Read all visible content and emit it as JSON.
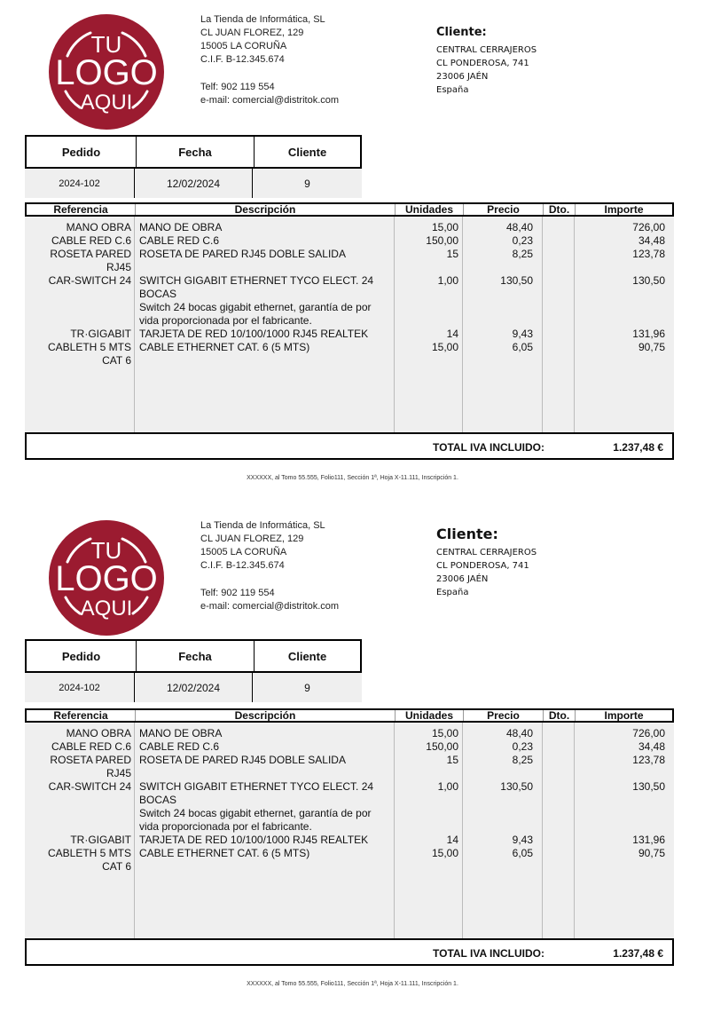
{
  "copies": [
    {
      "company": {
        "name": "La Tienda de Informática, SL",
        "address": "CL JUAN FLOREZ, 129",
        "city": "15005 LA CORUÑA",
        "cif": "C.I.F. B-12.345.674",
        "phone": "Telf: 902 119 554",
        "email": "e-mail: comercial@distritok.com"
      },
      "logo_text": [
        "TU",
        "LOGO",
        "AQUI"
      ],
      "client": {
        "label": "Cliente:",
        "name": "CENTRAL CERRAJEROS",
        "address": "CL PONDEROSA, 741",
        "city": "23006 JAÉN",
        "country": "España"
      },
      "order": {
        "headers": [
          "Pedido",
          "Fecha",
          "Cliente"
        ],
        "values": [
          "2024-102",
          "12/02/2024",
          "9"
        ]
      },
      "items": {
        "headers": [
          "Referencia",
          "Descripción",
          "Unidades",
          "Precio",
          "Dto.",
          "Importe"
        ],
        "rows": [
          {
            "ref": "MANO OBRA",
            "desc": "MANO DE OBRA",
            "units": "15,00",
            "price": "48,40",
            "dto": "",
            "amount": "726,00"
          },
          {
            "ref": "CABLE RED C.6",
            "desc": "CABLE RED C.6",
            "units": "150,00",
            "price": "0,23",
            "dto": "",
            "amount": "34,48"
          },
          {
            "ref": "ROSETA PARED RJ45",
            "desc": "ROSETA DE PARED RJ45 DOBLE SALIDA",
            "units": "15",
            "price": "8,25",
            "dto": "",
            "amount": "123,78"
          },
          {
            "ref": "CAR-SWITCH 24",
            "desc": "SWITCH GIGABIT ETHERNET TYCO ELECT. 24 BOCAS\nSwitch 24 bocas gigabit ethernet, garantía de por vida proporcionada por el fabricante.",
            "units": "1,00",
            "price": "130,50",
            "dto": "",
            "amount": "130,50"
          },
          {
            "ref": "TR·GIGABIT",
            "desc": "TARJETA DE RED 10/100/1000 RJ45 REALTEK",
            "units": "14",
            "price": "9,43",
            "dto": "",
            "amount": "131,96"
          },
          {
            "ref": "CABLETH 5 MTS CAT 6",
            "desc": "CABLE ETHERNET CAT. 6 (5 MTS)",
            "units": "15,00",
            "price": "6,05",
            "dto": "",
            "amount": "90,75"
          }
        ]
      },
      "total": {
        "label": "TOTAL IVA INCLUIDO:",
        "value": "1.237,48 €"
      },
      "footer": "XXXXXX, al Tomo 55.555, Folio111, Sección 1ª, Hoja X-11.111, Inscripción 1."
    },
    {
      "company": {
        "name": "La Tienda de Informática, SL",
        "address": "CL JUAN FLOREZ, 129",
        "city": "15005 LA CORUÑA",
        "cif": "C.I.F. B-12.345.674",
        "phone": "Telf: 902 119 554",
        "email": "e-mail: comercial@distritok.com"
      },
      "logo_text": [
        "TU",
        "LOGO",
        "AQUI"
      ],
      "client": {
        "label": "Cliente:",
        "name": "CENTRAL CERRAJEROS",
        "address": "CL PONDEROSA, 741",
        "city": "23006 JAÉN",
        "country": "España"
      },
      "order": {
        "headers": [
          "Pedido",
          "Fecha",
          "Cliente"
        ],
        "values": [
          "2024-102",
          "12/02/2024",
          "9"
        ]
      },
      "items": {
        "headers": [
          "Referencia",
          "Descripción",
          "Unidades",
          "Precio",
          "Dto.",
          "Importe"
        ],
        "rows": [
          {
            "ref": "MANO OBRA",
            "desc": "MANO DE OBRA",
            "units": "15,00",
            "price": "48,40",
            "dto": "",
            "amount": "726,00"
          },
          {
            "ref": "CABLE RED C.6",
            "desc": "CABLE RED C.6",
            "units": "150,00",
            "price": "0,23",
            "dto": "",
            "amount": "34,48"
          },
          {
            "ref": "ROSETA PARED RJ45",
            "desc": "ROSETA DE PARED RJ45 DOBLE SALIDA",
            "units": "15",
            "price": "8,25",
            "dto": "",
            "amount": "123,78"
          },
          {
            "ref": "CAR-SWITCH 24",
            "desc": "SWITCH GIGABIT ETHERNET TYCO ELECT. 24 BOCAS\nSwitch 24 bocas gigabit ethernet, garantía de por vida proporcionada por el fabricante.",
            "units": "1,00",
            "price": "130,50",
            "dto": "",
            "amount": "130,50"
          },
          {
            "ref": "TR·GIGABIT",
            "desc": "TARJETA DE RED 10/100/1000 RJ45 REALTEK",
            "units": "14",
            "price": "9,43",
            "dto": "",
            "amount": "131,96"
          },
          {
            "ref": "CABLETH 5 MTS CAT 6",
            "desc": "CABLE ETHERNET CAT. 6 (5 MTS)",
            "units": "15,00",
            "price": "6,05",
            "dto": "",
            "amount": "90,75"
          }
        ]
      },
      "total": {
        "label": "TOTAL IVA INCLUIDO:",
        "value": "1.237,48 €"
      },
      "footer": "XXXXXX, al Tomo 55.555, Folio111, Sección 1ª, Hoja X-11.111, Inscripción 1."
    }
  ],
  "colors": {
    "logo": "#9b1b30",
    "row_bg": "#efefef"
  }
}
